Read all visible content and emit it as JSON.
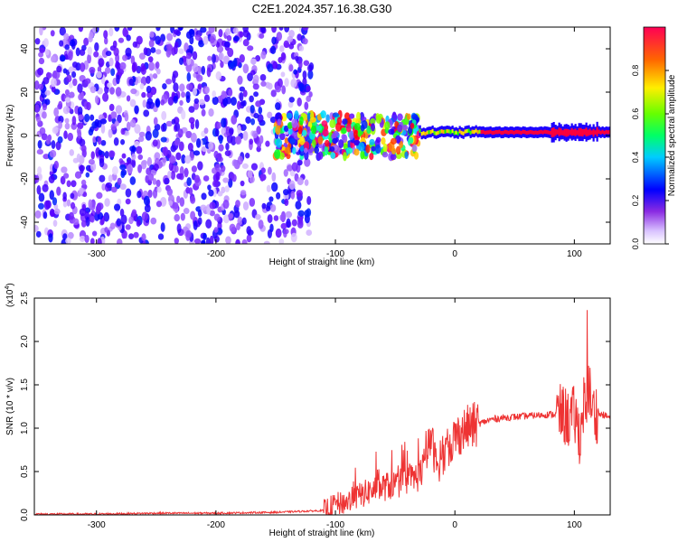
{
  "figure_title": "C2E1.2024.357.16.38.G30",
  "chart_data": [
    {
      "type": "heatmap",
      "xlabel": "Height of straight line (km)",
      "ylabel": "Frequency (Hz)",
      "xlim": [
        -352,
        130
      ],
      "ylim": [
        -50,
        50
      ],
      "x_ticks": [
        -300,
        -200,
        -100,
        0,
        100
      ],
      "x_tick_labels": [
        "-300",
        "-200",
        "-100",
        "0",
        "100"
      ],
      "y_ticks": [
        -40,
        -20,
        0,
        20,
        40
      ],
      "y_tick_labels": [
        "-40",
        "-20",
        "0",
        "20",
        "40"
      ],
      "colorbar": {
        "label": "Normalized spectral amplitude",
        "range": [
          0,
          1
        ],
        "ticks": [
          0.0,
          0.2,
          0.4,
          0.6,
          0.8
        ],
        "tick_labels": [
          "0.0",
          "0.2",
          "0.4",
          "0.6",
          "0.8"
        ],
        "colormap": [
          "#ffffff",
          "#9b59ff",
          "#5a00ff",
          "#0000ff",
          "#00ffff",
          "#00ff00",
          "#ffff00",
          "#ff8800",
          "#ff0000",
          "#ff0066"
        ]
      },
      "regions": [
        {
          "x_range": [
            -352,
            -120
          ],
          "freq_range": [
            -50,
            50
          ],
          "amplitude": 0.1,
          "description_type": "broadband noise"
        },
        {
          "x_range": [
            -150,
            -30
          ],
          "freq_range": [
            -10,
            10
          ],
          "amplitude": 0.3
        },
        {
          "x_range": [
            -30,
            130
          ],
          "freq_center": 1.5,
          "freq_halfwidth": 1.5,
          "amplitude": 0.95
        }
      ],
      "grid": false
    },
    {
      "type": "line",
      "xlabel": "Height of straight line (km)",
      "ylabel": "SNR (10 * v/v)",
      "y_multiplier_label": "(x10",
      "y_multiplier_exp": "4",
      "y_multiplier_close": ")",
      "xlim": [
        -352,
        130
      ],
      "ylim": [
        0,
        2.5
      ],
      "x_ticks": [
        -300,
        -200,
        -100,
        0,
        100
      ],
      "x_tick_labels": [
        "-300",
        "-200",
        "-100",
        "0",
        "100"
      ],
      "y_ticks": [
        0,
        0.5,
        1.0,
        1.5,
        2.0,
        2.5
      ],
      "y_tick_labels": [
        "0.0",
        "0.5",
        "1.0",
        "1.5",
        "2.0",
        "2.5"
      ],
      "series_color": "#ee3333",
      "series": [
        {
          "x": [
            -352,
            -300,
            -250,
            -200,
            -150,
            -110,
            -100,
            -90,
            -80,
            -70,
            -60,
            -50,
            -40,
            -30,
            -25,
            -20,
            -18,
            -15,
            -10,
            -5,
            0,
            10,
            20,
            30,
            40,
            50,
            60,
            70,
            80,
            90,
            95,
            100,
            105,
            108,
            110,
            112,
            115,
            120,
            125,
            130
          ],
          "y": [
            0.01,
            0.01,
            0.02,
            0.02,
            0.03,
            0.05,
            0.12,
            0.15,
            0.22,
            0.28,
            0.32,
            0.35,
            0.4,
            0.45,
            0.6,
            0.9,
            0.75,
            0.55,
            0.65,
            0.8,
            0.9,
            1.0,
            1.05,
            1.1,
            1.12,
            1.13,
            1.14,
            1.15,
            1.16,
            1.16,
            1.1,
            1.15,
            0.9,
            1.3,
            1.1,
            1.5,
            1.2,
            1.16,
            1.15,
            1.12
          ]
        }
      ],
      "grid": false
    }
  ]
}
